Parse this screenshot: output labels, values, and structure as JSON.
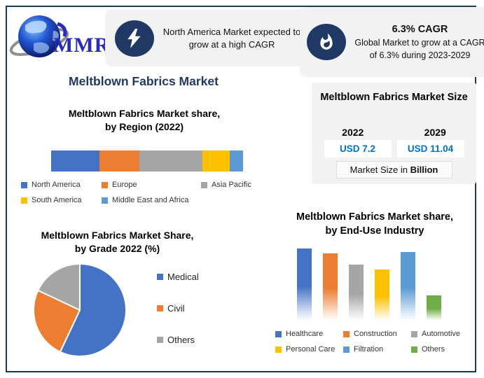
{
  "logo": {
    "brand": "MMR"
  },
  "callouts": [
    {
      "icon": "lightning-icon",
      "text": "North America Market expected to grow at a high CAGR"
    },
    {
      "icon": "flame-icon",
      "heading": "6.3% CAGR",
      "text": "Global Market to grow at a CAGR of 6.3% during 2023-2029"
    }
  ],
  "page_title": "Meltblown Fabrics Market",
  "market_size": {
    "title": "Meltblown Fabrics Market Size",
    "columns": [
      {
        "year": "2022",
        "value": "USD 7.2"
      },
      {
        "year": "2029",
        "value": "USD 11.04"
      }
    ],
    "unit_prefix": "Market Size in ",
    "unit_bold": "Billion"
  },
  "colors": {
    "title_navy": "#1f3864",
    "badge_navy": "#1f3864",
    "panel_gray": "#f2f2f2",
    "value_blue": "#0070c0",
    "frame_border": "#1b3c4e"
  },
  "chart_data": [
    {
      "type": "bar",
      "variant": "stacked-horizontal",
      "title": "Meltblown Fabrics Market share, by Region (2022)",
      "title_lines": [
        "Meltblown Fabrics Market share,",
        "by Region (2022)"
      ],
      "categories": [
        "North America",
        "Europe",
        "Asia Pacific",
        "South America",
        "Middle East and Africa"
      ],
      "values_pct": [
        25,
        21,
        33,
        14,
        7
      ],
      "colors": [
        "#4472C4",
        "#ED7D31",
        "#A5A5A5",
        "#FFC000",
        "#5B9BD5"
      ],
      "legend_position": "below",
      "axes": "none"
    },
    {
      "type": "pie",
      "title": "Meltblown Fabrics Market Share, by Grade 2022 (%)",
      "title_lines": [
        "Meltblown Fabrics Market Share,",
        "by Grade 2022 (%)"
      ],
      "categories": [
        "Medical",
        "Civil",
        "Others"
      ],
      "values_pct": [
        57,
        25,
        18
      ],
      "colors": [
        "#4472C4",
        "#ED7D31",
        "#A5A5A5"
      ],
      "legend_position": "right",
      "start_angle_deg": 0,
      "direction": "clockwise"
    },
    {
      "type": "bar",
      "variant": "vertical-columns-gradient-fade",
      "title": "Meltblown Fabrics Market share, by End-Use Industry",
      "title_lines": [
        "Meltblown Fabrics Market share,",
        "by End-Use Industry"
      ],
      "categories": [
        "Healthcare",
        "Construction",
        "Automotive",
        "Personal Care",
        "Filtration",
        "Others"
      ],
      "values_rel": [
        100,
        93,
        78,
        71,
        95,
        35
      ],
      "colors": [
        "#4472C4",
        "#ED7D31",
        "#A5A5A5",
        "#FFC000",
        "#5B9BD5",
        "#70AD47"
      ],
      "legend_position": "below",
      "axes": "none"
    }
  ]
}
